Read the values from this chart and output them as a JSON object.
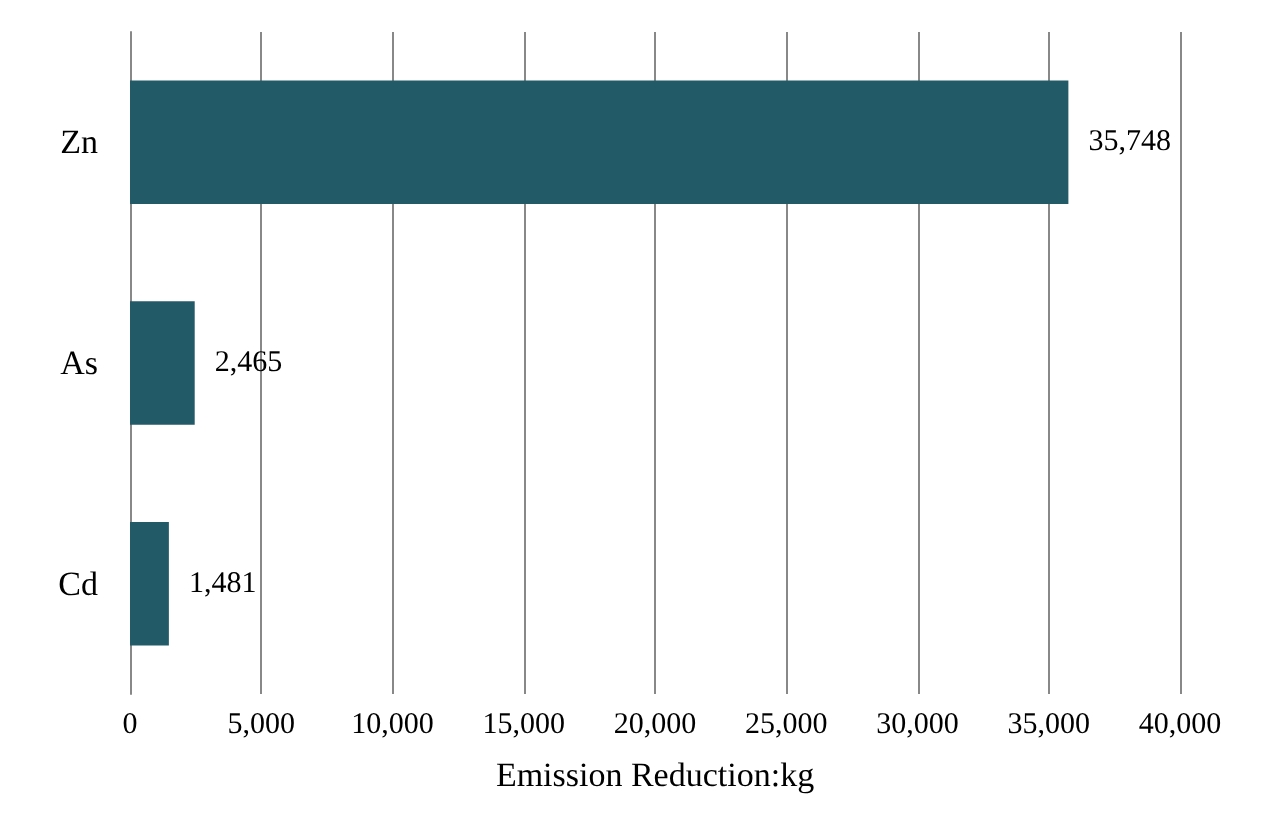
{
  "chart_data": {
    "type": "bar",
    "orientation": "horizontal",
    "xlabel": "Emission Reduction:kg",
    "categories": [
      "Zn",
      "As",
      "Cd"
    ],
    "values": [
      35748,
      2465,
      1481
    ],
    "color": "#235a68",
    "value_labels": [
      "35,748",
      "2,465",
      "1,481"
    ],
    "xlim": [
      0,
      40000
    ],
    "xticks": [
      0,
      {
        "value": 5000,
        "label": "5,000"
      },
      {
        "value": 10000,
        "label": "10,000"
      },
      {
        "value": 15000,
        "label": "15,000"
      },
      {
        "value": 20000,
        "label": "20,000"
      },
      {
        "value": 25000,
        "label": "25,000"
      },
      {
        "value": 30000,
        "label": "30,000"
      },
      {
        "value": 35000,
        "label": "35,000"
      },
      {
        "value": 40000,
        "label": "40,000"
      }
    ],
    "grid": "x"
  }
}
